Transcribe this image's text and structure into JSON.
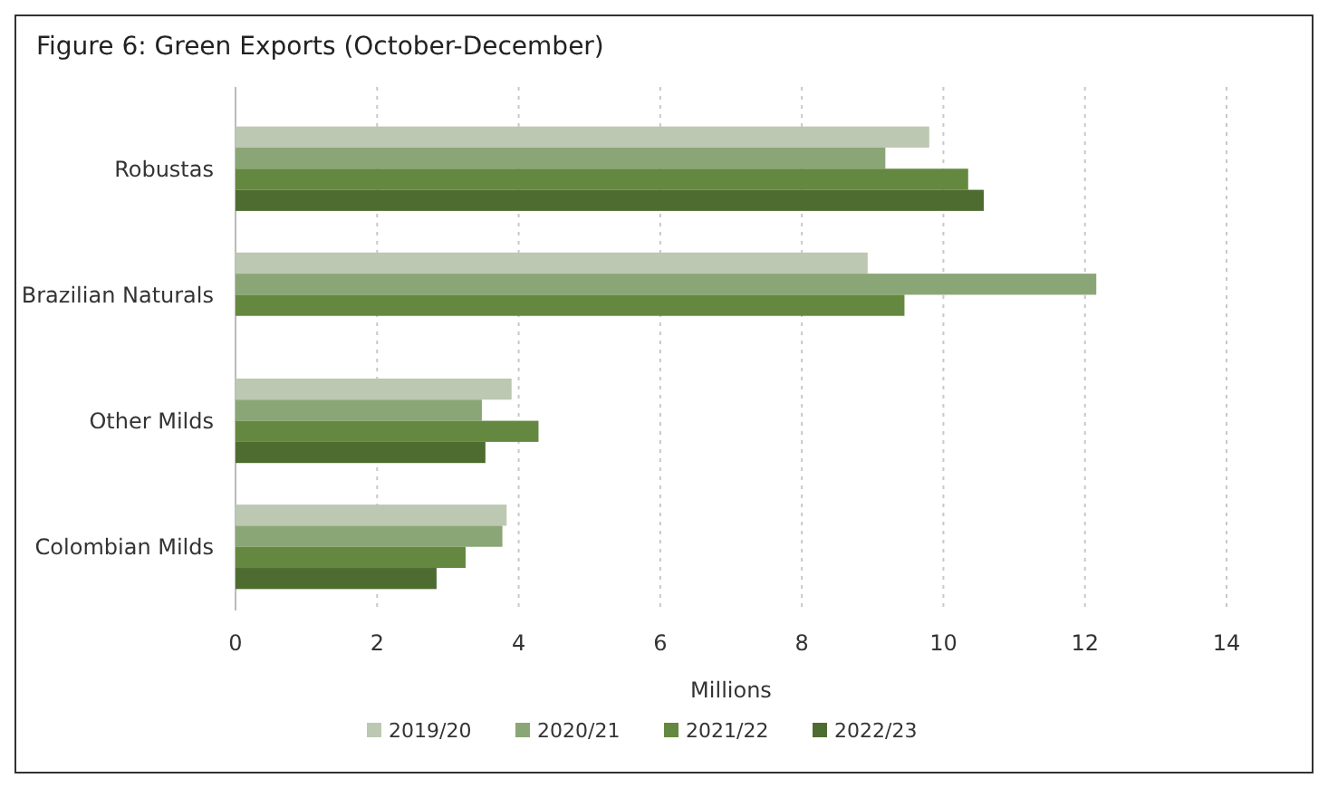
{
  "chart_data": {
    "type": "bar",
    "orientation": "horizontal",
    "title": "Figure 6: Green Exports (October-December)",
    "xlabel": "Millions",
    "categories": [
      "Robustas",
      "Brazilian Naturals",
      "Other Milds",
      "Colombian Milds"
    ],
    "series": [
      {
        "name": "2019/20",
        "color": "#bcc8b2",
        "values": [
          9.8,
          8.93,
          3.9,
          3.83
        ]
      },
      {
        "name": "2020/21",
        "color": "#8ba676",
        "values": [
          9.18,
          12.16,
          3.48,
          3.77
        ]
      },
      {
        "name": "2021/22",
        "color": "#64883f",
        "values": [
          10.35,
          9.45,
          4.28,
          3.25
        ]
      },
      {
        "name": "2022/23",
        "color": "#4e6b30",
        "values": [
          10.57,
          null,
          3.53,
          2.84
        ]
      }
    ],
    "xlim": [
      0,
      14
    ],
    "xticks": [
      0,
      2,
      4,
      6,
      8,
      10,
      12,
      14
    ],
    "grid": "x",
    "legend": "bottom"
  }
}
